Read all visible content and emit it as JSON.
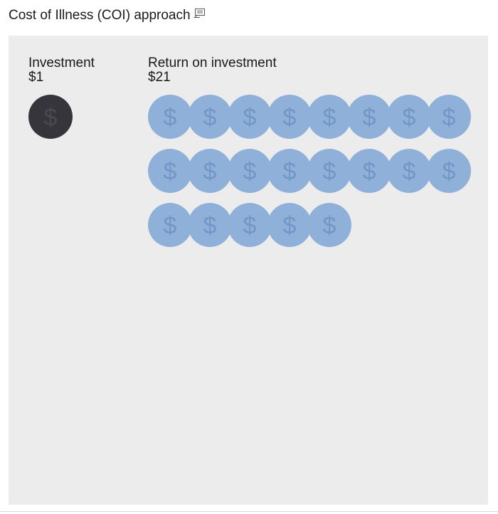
{
  "header": {
    "title": "Cost of Illness (COI) approach",
    "note_icon": "comment-note-icon"
  },
  "chart_data": {
    "type": "pictogram",
    "unit_icon": "dollar-coin",
    "unit_symbol": "$",
    "series": [
      {
        "name": "Investment",
        "value_label": "$1",
        "value": 1,
        "color": "#35353b",
        "symbol_color": "#4a4a50"
      },
      {
        "name": "Return on investment",
        "value_label": "$21",
        "value": 21,
        "color": "#8fb0d8",
        "symbol_color": "#7297c6"
      }
    ]
  }
}
